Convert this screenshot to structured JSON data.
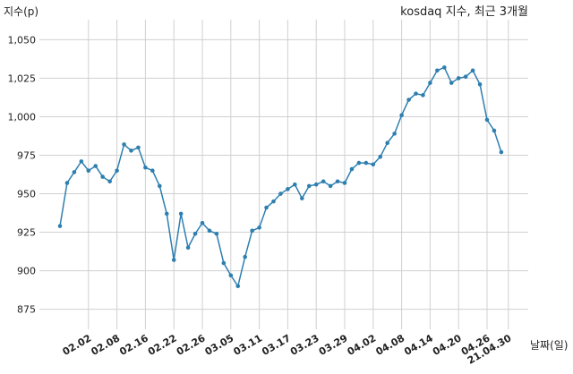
{
  "chart_data": {
    "type": "line",
    "title": "kosdaq 지수, 최근 3개월",
    "xlabel": "날짜(일)",
    "ylabel": "지수(p)",
    "ylim": [
      862,
      1063
    ],
    "yticks": [
      875,
      900,
      925,
      950,
      975,
      1000,
      1025,
      1050
    ],
    "ytick_labels": [
      "875",
      "900",
      "925",
      "950",
      "975",
      "1,000",
      "1,025",
      "1,050"
    ],
    "xtick_labels": [
      "02.02",
      "02.08",
      "02.16",
      "02.22",
      "02.26",
      "03.05",
      "03.11",
      "03.17",
      "03.23",
      "03.29",
      "04.02",
      "04.08",
      "04.14",
      "04.20",
      "04.26",
      "21.04.30"
    ],
    "xtick_index": [
      4,
      8,
      12,
      16,
      20,
      24,
      28,
      32,
      36,
      40,
      44,
      48,
      52,
      56,
      60,
      63
    ],
    "grid": true,
    "line_color": "#2e7fb0",
    "series": [
      {
        "values": [
          929,
          957,
          964,
          971,
          965,
          968,
          961,
          958,
          965,
          982,
          978,
          980,
          967,
          965,
          955,
          937,
          907,
          937,
          915,
          924,
          931,
          926,
          924,
          905,
          897,
          890,
          909,
          926,
          928,
          941,
          945,
          950,
          953,
          956,
          947,
          955,
          956,
          958,
          955,
          958,
          957,
          966,
          970,
          970,
          969,
          974,
          983,
          989,
          1001,
          1011,
          1015,
          1014,
          1022,
          1030,
          1032,
          1022,
          1025,
          1026,
          1030,
          1021,
          998,
          991,
          977
        ]
      }
    ]
  }
}
